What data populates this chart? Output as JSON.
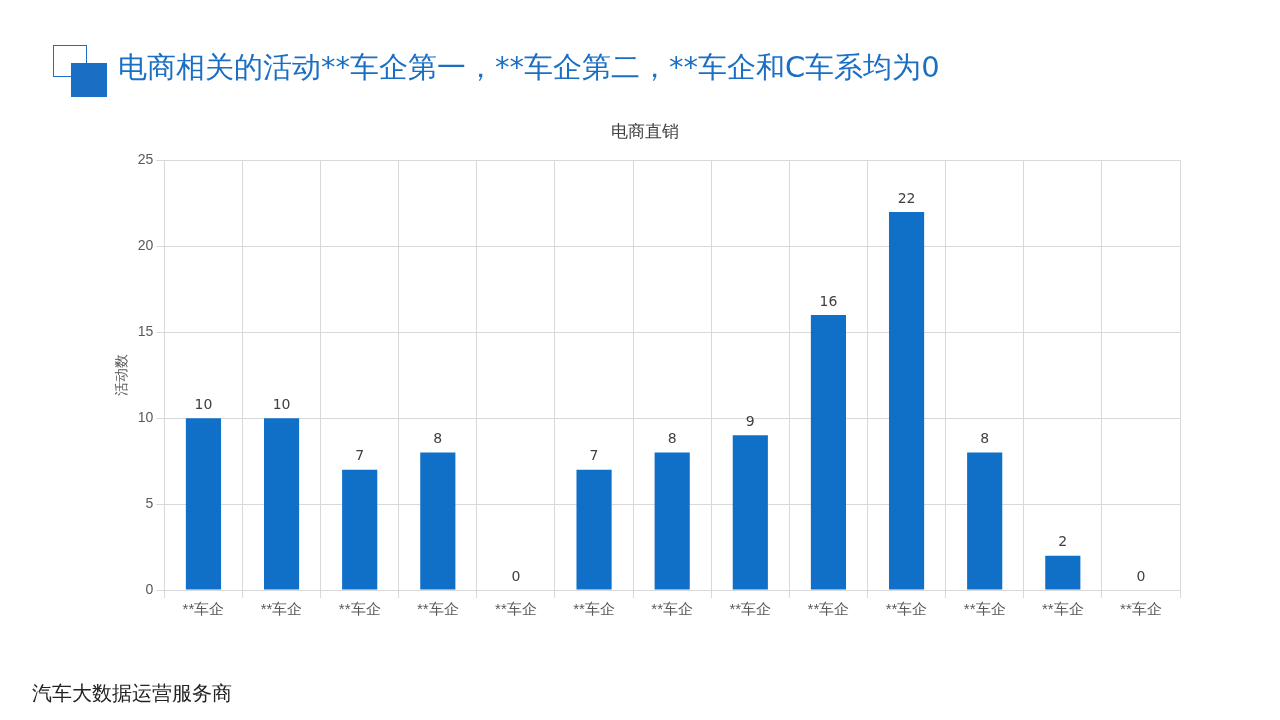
{
  "chart_data": {
    "type": "bar",
    "title": "电商直销",
    "subtitle": "电商相关的活动**车企第一，**车企第二，**车企和C车系均为0",
    "ylabel": "活动数",
    "categories": [
      "**车企",
      "**车企",
      "**车企",
      "**车企",
      "**车企",
      "**车企",
      "**车企",
      "**车企",
      "**车企",
      "**车企",
      "**车企",
      "**车企",
      "**车企"
    ],
    "values": [
      10,
      10,
      7,
      8,
      0,
      7,
      8,
      9,
      16,
      22,
      8,
      2,
      0
    ],
    "color": "#1070c8",
    "ylim": [
      0,
      25
    ],
    "yticks": [
      0,
      5,
      10,
      15,
      20,
      25
    ],
    "grid": true,
    "data_labels": true,
    "annotations": [
      "汽车大数据运营服务商"
    ]
  }
}
